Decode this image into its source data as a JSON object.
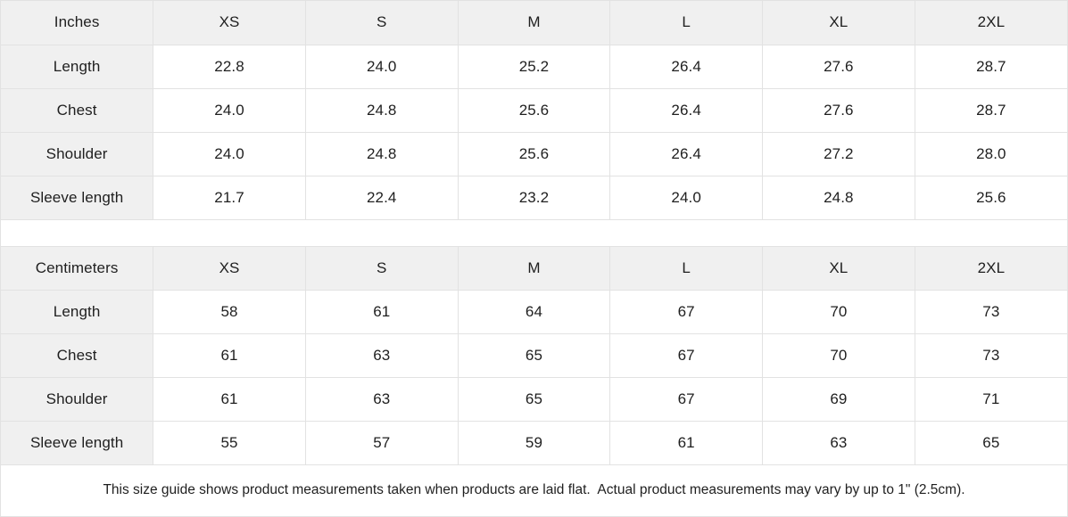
{
  "colors": {
    "header_bg": "#f0f0f0",
    "border": "#e2e2e2",
    "text": "#1f1f1f",
    "cell_bg": "#ffffff"
  },
  "tables": [
    {
      "id": "inches",
      "unit_label": "Inches",
      "columns": [
        "XS",
        "S",
        "M",
        "L",
        "XL",
        "2XL"
      ],
      "rows": [
        {
          "label": "Length",
          "values": [
            "22.8",
            "24.0",
            "25.2",
            "26.4",
            "27.6",
            "28.7"
          ]
        },
        {
          "label": "Chest",
          "values": [
            "24.0",
            "24.8",
            "25.6",
            "26.4",
            "27.6",
            "28.7"
          ]
        },
        {
          "label": "Shoulder",
          "values": [
            "24.0",
            "24.8",
            "25.6",
            "26.4",
            "27.2",
            "28.0"
          ]
        },
        {
          "label": "Sleeve length",
          "values": [
            "21.7",
            "22.4",
            "23.2",
            "24.0",
            "24.8",
            "25.6"
          ]
        }
      ]
    },
    {
      "id": "centimeters",
      "unit_label": "Centimeters",
      "columns": [
        "XS",
        "S",
        "M",
        "L",
        "XL",
        "2XL"
      ],
      "rows": [
        {
          "label": "Length",
          "values": [
            "58",
            "61",
            "64",
            "67",
            "70",
            "73"
          ]
        },
        {
          "label": "Chest",
          "values": [
            "61",
            "63",
            "65",
            "67",
            "70",
            "73"
          ]
        },
        {
          "label": "Shoulder",
          "values": [
            "61",
            "63",
            "65",
            "67",
            "69",
            "71"
          ]
        },
        {
          "label": "Sleeve length",
          "values": [
            "55",
            "57",
            "59",
            "61",
            "63",
            "65"
          ]
        }
      ]
    }
  ],
  "footer": {
    "note": "This size guide shows product measurements taken when products are laid flat.  Actual product measurements may vary by up to 1\" (2.5cm)."
  }
}
